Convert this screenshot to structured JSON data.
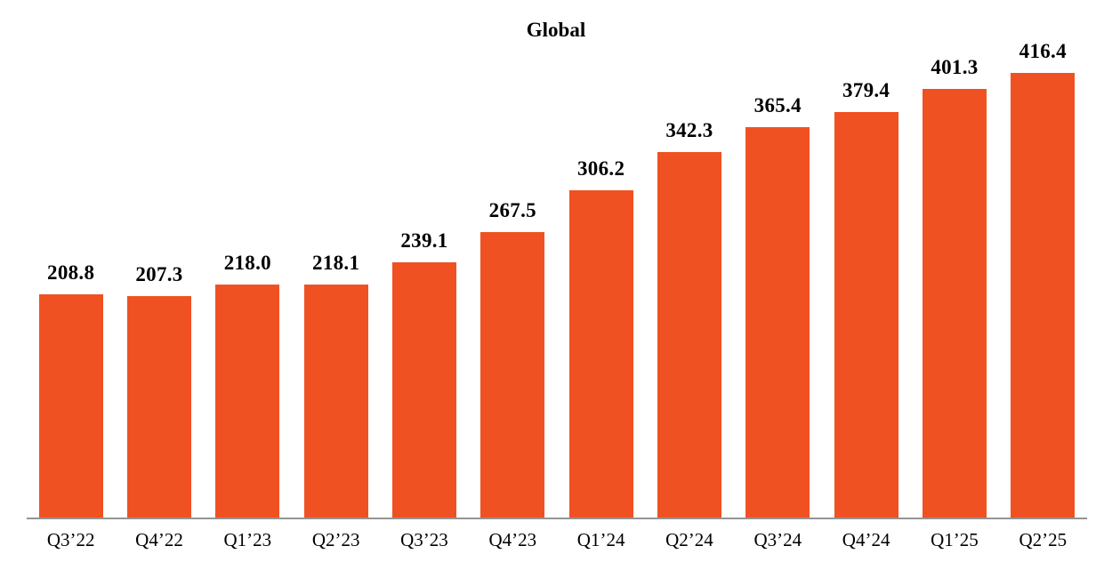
{
  "title": "Global",
  "colors": {
    "bar": "#F05122",
    "axis_line": "#949494",
    "text": "#000000"
  },
  "chart_data": {
    "type": "bar",
    "title": "Global",
    "categories": [
      "Q3’22",
      "Q4’22",
      "Q1’23",
      "Q2’23",
      "Q3’23",
      "Q4’23",
      "Q1’24",
      "Q2’24",
      "Q3’24",
      "Q4’24",
      "Q1’25",
      "Q2’25"
    ],
    "values": [
      208.8,
      207.3,
      218.0,
      218.1,
      239.1,
      267.5,
      306.2,
      342.3,
      365.4,
      379.4,
      401.3,
      416.4
    ],
    "value_labels": [
      "208.8",
      "207.3",
      "218.0",
      "218.1",
      "239.1",
      "267.5",
      "306.2",
      "342.3",
      "365.4",
      "379.4",
      "401.3",
      "416.4"
    ],
    "xlabel": "",
    "ylabel": "",
    "ylim": [
      0,
      435
    ],
    "grid": false,
    "legend": false,
    "data_labels_position": "above-bar",
    "baseline_axis": "x-only"
  }
}
